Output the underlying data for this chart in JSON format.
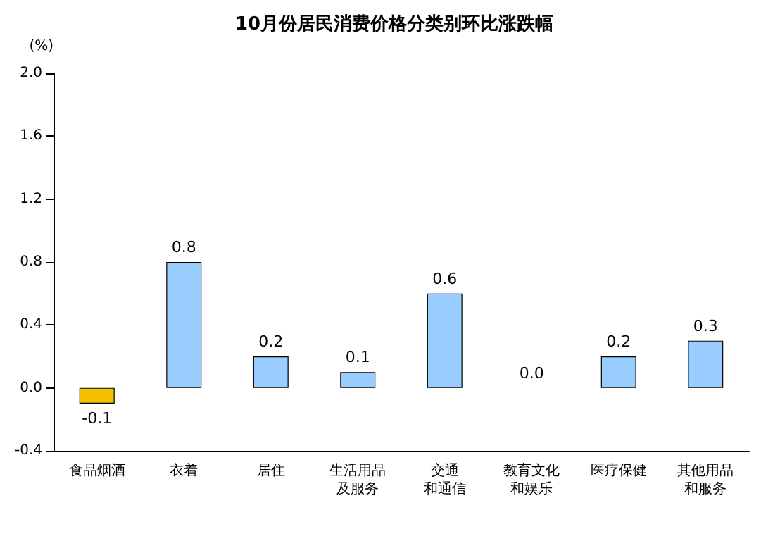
{
  "chart_data": {
    "type": "bar",
    "title": "10月份居民消费价格分类别环比涨跌幅",
    "ylabel": "(%)",
    "categories": [
      "食品烟酒",
      "衣着",
      "居住",
      "生活用品及服务",
      "交通和通信",
      "教育文化和娱乐",
      "医疗保健",
      "其他用品和服务"
    ],
    "values": [
      -0.1,
      0.8,
      0.2,
      0.1,
      0.6,
      0.0,
      0.2,
      0.3
    ],
    "colors": [
      "#f5c000",
      "#99ccff",
      "#99ccff",
      "#99ccff",
      "#99ccff",
      "#99ccff",
      "#99ccff",
      "#99ccff"
    ],
    "value_labels": [
      "-0.1",
      "0.8",
      "0.2",
      "0.1",
      "0.6",
      "0.0",
      "0.2",
      "0.3"
    ],
    "ylim": [
      -0.4,
      2.0
    ],
    "yticks": [
      {
        "value": -0.4,
        "label": "-0.4"
      },
      {
        "value": 0,
        "label": "0.0"
      },
      {
        "value": 0.4,
        "label": "0.4"
      },
      {
        "value": 0.8,
        "label": "0.8"
      },
      {
        "value": 1.2,
        "label": "1.2"
      },
      {
        "value": 1.6,
        "label": "1.6"
      },
      {
        "value": 2.0,
        "label": "2.0"
      }
    ],
    "grid": false
  }
}
